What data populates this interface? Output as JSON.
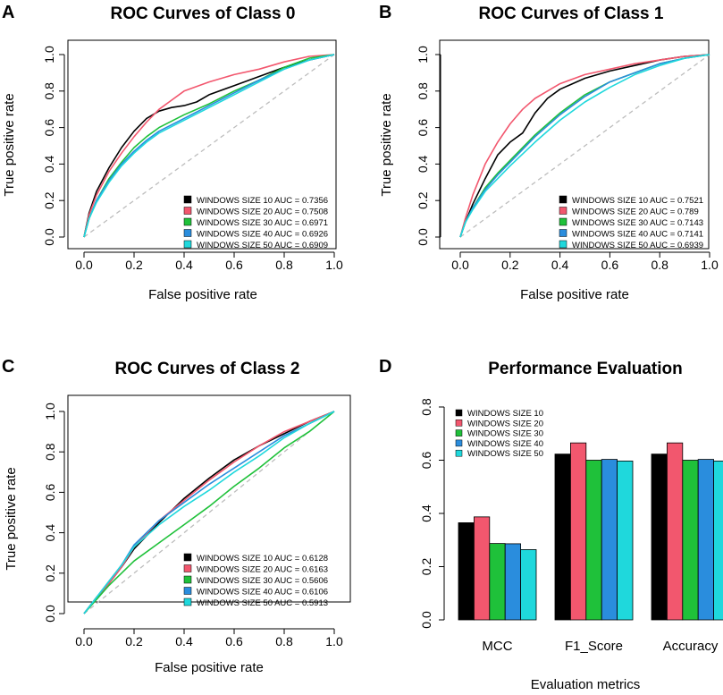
{
  "colors": {
    "windows_10": "#000000",
    "windows_20": "#f2576e",
    "windows_30": "#1fc13a",
    "windows_40": "#2a8ddd",
    "windows_50": "#1fd8dc",
    "diagonal": "#bdbdbd"
  },
  "chart_data": [
    {
      "panel": "A",
      "type": "line",
      "title": "ROC Curves of Class 0",
      "xlabel": "False positive rate",
      "ylabel": "True positive rate",
      "xlim": [
        0,
        1
      ],
      "ylim": [
        0,
        1
      ],
      "x_ticks": [
        "0.0",
        "0.2",
        "0.4",
        "0.6",
        "0.8",
        "1.0"
      ],
      "y_ticks": [
        "0.0",
        "0.2",
        "0.4",
        "0.6",
        "0.8",
        "1.0"
      ],
      "legend_position": "bottom-right",
      "series": [
        {
          "name": "WINDOWS SIZE 10 AUC = 0.7356",
          "color": "#000000",
          "points": [
            [
              0,
              0
            ],
            [
              0.02,
              0.13
            ],
            [
              0.05,
              0.25
            ],
            [
              0.1,
              0.38
            ],
            [
              0.15,
              0.49
            ],
            [
              0.2,
              0.58
            ],
            [
              0.25,
              0.65
            ],
            [
              0.3,
              0.69
            ],
            [
              0.35,
              0.71
            ],
            [
              0.4,
              0.72
            ],
            [
              0.45,
              0.74
            ],
            [
              0.5,
              0.78
            ],
            [
              0.6,
              0.83
            ],
            [
              0.7,
              0.88
            ],
            [
              0.8,
              0.93
            ],
            [
              0.9,
              0.97
            ],
            [
              1,
              1
            ]
          ]
        },
        {
          "name": "WINDOWS SIZE 20 AUC = 0.7508",
          "color": "#f2576e",
          "points": [
            [
              0,
              0
            ],
            [
              0.02,
              0.12
            ],
            [
              0.05,
              0.23
            ],
            [
              0.1,
              0.36
            ],
            [
              0.15,
              0.46
            ],
            [
              0.2,
              0.55
            ],
            [
              0.25,
              0.63
            ],
            [
              0.3,
              0.7
            ],
            [
              0.35,
              0.75
            ],
            [
              0.4,
              0.8
            ],
            [
              0.5,
              0.85
            ],
            [
              0.6,
              0.89
            ],
            [
              0.7,
              0.92
            ],
            [
              0.8,
              0.96
            ],
            [
              0.9,
              0.99
            ],
            [
              1,
              1
            ]
          ]
        },
        {
          "name": "WINDOWS SIZE 30 AUC = 0.6971",
          "color": "#1fc13a",
          "points": [
            [
              0,
              0
            ],
            [
              0.02,
              0.1
            ],
            [
              0.05,
              0.2
            ],
            [
              0.1,
              0.32
            ],
            [
              0.15,
              0.41
            ],
            [
              0.2,
              0.49
            ],
            [
              0.25,
              0.55
            ],
            [
              0.3,
              0.6
            ],
            [
              0.4,
              0.67
            ],
            [
              0.5,
              0.73
            ],
            [
              0.6,
              0.8
            ],
            [
              0.7,
              0.86
            ],
            [
              0.8,
              0.93
            ],
            [
              0.9,
              0.98
            ],
            [
              1,
              1
            ]
          ]
        },
        {
          "name": "WINDOWS SIZE 40 AUC = 0.6926",
          "color": "#2a8ddd",
          "points": [
            [
              0,
              0
            ],
            [
              0.02,
              0.1
            ],
            [
              0.05,
              0.2
            ],
            [
              0.1,
              0.31
            ],
            [
              0.15,
              0.4
            ],
            [
              0.2,
              0.47
            ],
            [
              0.25,
              0.53
            ],
            [
              0.3,
              0.58
            ],
            [
              0.4,
              0.65
            ],
            [
              0.5,
              0.72
            ],
            [
              0.6,
              0.79
            ],
            [
              0.7,
              0.86
            ],
            [
              0.8,
              0.92
            ],
            [
              0.9,
              0.97
            ],
            [
              1,
              1
            ]
          ]
        },
        {
          "name": "WINDOWS SIZE 50 AUC = 0.6909",
          "color": "#1fd8dc",
          "points": [
            [
              0,
              0
            ],
            [
              0.02,
              0.1
            ],
            [
              0.05,
              0.19
            ],
            [
              0.1,
              0.3
            ],
            [
              0.15,
              0.39
            ],
            [
              0.2,
              0.46
            ],
            [
              0.25,
              0.52
            ],
            [
              0.3,
              0.57
            ],
            [
              0.4,
              0.64
            ],
            [
              0.5,
              0.71
            ],
            [
              0.6,
              0.78
            ],
            [
              0.7,
              0.85
            ],
            [
              0.8,
              0.92
            ],
            [
              0.9,
              0.97
            ],
            [
              1,
              1
            ]
          ]
        }
      ]
    },
    {
      "panel": "B",
      "type": "line",
      "title": "ROC Curves of Class 1",
      "xlabel": "False positive rate",
      "ylabel": "True positive rate",
      "xlim": [
        0,
        1
      ],
      "ylim": [
        0,
        1
      ],
      "x_ticks": [
        "0.0",
        "0.2",
        "0.4",
        "0.6",
        "0.8",
        "1.0"
      ],
      "y_ticks": [
        "0.0",
        "0.2",
        "0.4",
        "0.6",
        "0.8",
        "1.0"
      ],
      "legend_position": "bottom-right",
      "series": [
        {
          "name": "WINDOWS SIZE 10 AUC = 0.7521",
          "color": "#000000",
          "points": [
            [
              0,
              0
            ],
            [
              0.02,
              0.08
            ],
            [
              0.05,
              0.18
            ],
            [
              0.1,
              0.32
            ],
            [
              0.15,
              0.45
            ],
            [
              0.2,
              0.52
            ],
            [
              0.25,
              0.57
            ],
            [
              0.3,
              0.68
            ],
            [
              0.35,
              0.76
            ],
            [
              0.4,
              0.81
            ],
            [
              0.5,
              0.87
            ],
            [
              0.6,
              0.91
            ],
            [
              0.7,
              0.94
            ],
            [
              0.8,
              0.97
            ],
            [
              0.9,
              0.99
            ],
            [
              1,
              1
            ]
          ]
        },
        {
          "name": "WINDOWS SIZE 20 AUC = 0.789",
          "color": "#f2576e",
          "points": [
            [
              0,
              0
            ],
            [
              0.02,
              0.1
            ],
            [
              0.05,
              0.23
            ],
            [
              0.1,
              0.4
            ],
            [
              0.15,
              0.52
            ],
            [
              0.2,
              0.62
            ],
            [
              0.25,
              0.7
            ],
            [
              0.3,
              0.76
            ],
            [
              0.35,
              0.8
            ],
            [
              0.4,
              0.84
            ],
            [
              0.5,
              0.89
            ],
            [
              0.6,
              0.92
            ],
            [
              0.7,
              0.95
            ],
            [
              0.8,
              0.97
            ],
            [
              0.9,
              0.99
            ],
            [
              1,
              1
            ]
          ]
        },
        {
          "name": "WINDOWS SIZE 30 AUC = 0.7143",
          "color": "#1fc13a",
          "points": [
            [
              0,
              0
            ],
            [
              0.02,
              0.08
            ],
            [
              0.05,
              0.16
            ],
            [
              0.1,
              0.27
            ],
            [
              0.15,
              0.35
            ],
            [
              0.2,
              0.42
            ],
            [
              0.3,
              0.56
            ],
            [
              0.4,
              0.68
            ],
            [
              0.5,
              0.78
            ],
            [
              0.6,
              0.85
            ],
            [
              0.7,
              0.9
            ],
            [
              0.8,
              0.95
            ],
            [
              0.9,
              0.98
            ],
            [
              1,
              1
            ]
          ]
        },
        {
          "name": "WINDOWS SIZE 40 AUC = 0.7141",
          "color": "#2a8ddd",
          "points": [
            [
              0,
              0
            ],
            [
              0.02,
              0.08
            ],
            [
              0.05,
              0.16
            ],
            [
              0.1,
              0.26
            ],
            [
              0.15,
              0.34
            ],
            [
              0.2,
              0.41
            ],
            [
              0.3,
              0.55
            ],
            [
              0.4,
              0.67
            ],
            [
              0.5,
              0.77
            ],
            [
              0.6,
              0.85
            ],
            [
              0.7,
              0.9
            ],
            [
              0.8,
              0.95
            ],
            [
              0.9,
              0.98
            ],
            [
              1,
              1
            ]
          ]
        },
        {
          "name": "WINDOWS SIZE 50 AUC = 0.6939",
          "color": "#1fd8dc",
          "points": [
            [
              0,
              0
            ],
            [
              0.02,
              0.08
            ],
            [
              0.05,
              0.15
            ],
            [
              0.1,
              0.25
            ],
            [
              0.15,
              0.32
            ],
            [
              0.2,
              0.39
            ],
            [
              0.3,
              0.52
            ],
            [
              0.4,
              0.64
            ],
            [
              0.5,
              0.74
            ],
            [
              0.6,
              0.82
            ],
            [
              0.7,
              0.89
            ],
            [
              0.8,
              0.94
            ],
            [
              0.9,
              0.98
            ],
            [
              1,
              1
            ]
          ]
        }
      ]
    },
    {
      "panel": "C",
      "type": "line",
      "title": "ROC Curves of Class 2",
      "xlabel": "False positive rate",
      "ylabel": "True positive rate",
      "xlim": [
        0,
        1
      ],
      "ylim": [
        0,
        1
      ],
      "x_ticks": [
        "0.0",
        "0.2",
        "0.4",
        "0.6",
        "0.8",
        "1.0"
      ],
      "y_ticks": [
        "0.0",
        "0.2",
        "0.4",
        "0.6",
        "0.8",
        "1.0"
      ],
      "legend_position": "bottom-right",
      "series": [
        {
          "name": "WINDOWS SIZE 10 AUC = 0.6128",
          "color": "#000000",
          "points": [
            [
              0,
              0
            ],
            [
              0.05,
              0.08
            ],
            [
              0.1,
              0.15
            ],
            [
              0.15,
              0.23
            ],
            [
              0.2,
              0.32
            ],
            [
              0.3,
              0.45
            ],
            [
              0.4,
              0.57
            ],
            [
              0.5,
              0.67
            ],
            [
              0.6,
              0.76
            ],
            [
              0.7,
              0.83
            ],
            [
              0.8,
              0.89
            ],
            [
              0.9,
              0.95
            ],
            [
              1,
              1
            ]
          ]
        },
        {
          "name": "WINDOWS SIZE 20 AUC = 0.6163",
          "color": "#f2576e",
          "points": [
            [
              0,
              0
            ],
            [
              0.05,
              0.08
            ],
            [
              0.1,
              0.15
            ],
            [
              0.15,
              0.23
            ],
            [
              0.2,
              0.33
            ],
            [
              0.3,
              0.46
            ],
            [
              0.4,
              0.56
            ],
            [
              0.5,
              0.66
            ],
            [
              0.6,
              0.75
            ],
            [
              0.7,
              0.83
            ],
            [
              0.8,
              0.9
            ],
            [
              0.9,
              0.95
            ],
            [
              1,
              1
            ]
          ]
        },
        {
          "name": "WINDOWS SIZE 30 AUC = 0.5606",
          "color": "#1fc13a",
          "points": [
            [
              0,
              0
            ],
            [
              0.05,
              0.07
            ],
            [
              0.1,
              0.14
            ],
            [
              0.15,
              0.2
            ],
            [
              0.2,
              0.26
            ],
            [
              0.3,
              0.35
            ],
            [
              0.4,
              0.44
            ],
            [
              0.5,
              0.53
            ],
            [
              0.6,
              0.63
            ],
            [
              0.7,
              0.72
            ],
            [
              0.8,
              0.82
            ],
            [
              0.9,
              0.9
            ],
            [
              1,
              1
            ]
          ]
        },
        {
          "name": "WINDOWS SIZE 40 AUC = 0.6106",
          "color": "#2a8ddd",
          "points": [
            [
              0,
              0
            ],
            [
              0.05,
              0.08
            ],
            [
              0.1,
              0.16
            ],
            [
              0.15,
              0.24
            ],
            [
              0.2,
              0.34
            ],
            [
              0.3,
              0.46
            ],
            [
              0.4,
              0.55
            ],
            [
              0.5,
              0.64
            ],
            [
              0.6,
              0.72
            ],
            [
              0.7,
              0.8
            ],
            [
              0.8,
              0.88
            ],
            [
              0.9,
              0.94
            ],
            [
              1,
              1
            ]
          ]
        },
        {
          "name": "WINDOWS SIZE 50 AUC = 0.5913",
          "color": "#1fd8dc",
          "points": [
            [
              0,
              0
            ],
            [
              0.05,
              0.08
            ],
            [
              0.1,
              0.16
            ],
            [
              0.15,
              0.24
            ],
            [
              0.2,
              0.33
            ],
            [
              0.3,
              0.44
            ],
            [
              0.4,
              0.53
            ],
            [
              0.5,
              0.61
            ],
            [
              0.6,
              0.7
            ],
            [
              0.7,
              0.78
            ],
            [
              0.8,
              0.87
            ],
            [
              0.9,
              0.94
            ],
            [
              1,
              1
            ]
          ]
        }
      ]
    },
    {
      "panel": "D",
      "type": "bar",
      "title": "Performance Evaluation",
      "xlabel": "Evaluation metrics",
      "ylabel": "",
      "ylim": [
        0,
        0.8
      ],
      "y_ticks": [
        "0.0",
        "0.2",
        "0.4",
        "0.6",
        "0.8"
      ],
      "categories": [
        "MCC",
        "F1_Score",
        "Accuracy"
      ],
      "legend_position": "top-left",
      "series": [
        {
          "name": "WINDOWS SIZE 10",
          "color": "#000000",
          "values": [
            0.365,
            0.623,
            0.623
          ]
        },
        {
          "name": "WINDOWS SIZE 20",
          "color": "#f2576e",
          "values": [
            0.387,
            0.665,
            0.665
          ]
        },
        {
          "name": "WINDOWS SIZE 30",
          "color": "#1fc13a",
          "values": [
            0.287,
            0.6,
            0.6
          ]
        },
        {
          "name": "WINDOWS SIZE 40",
          "color": "#2a8ddd",
          "values": [
            0.286,
            0.603,
            0.603
          ]
        },
        {
          "name": "WINDOWS SIZE 50",
          "color": "#1fd8dc",
          "values": [
            0.264,
            0.597,
            0.597
          ]
        }
      ]
    }
  ]
}
